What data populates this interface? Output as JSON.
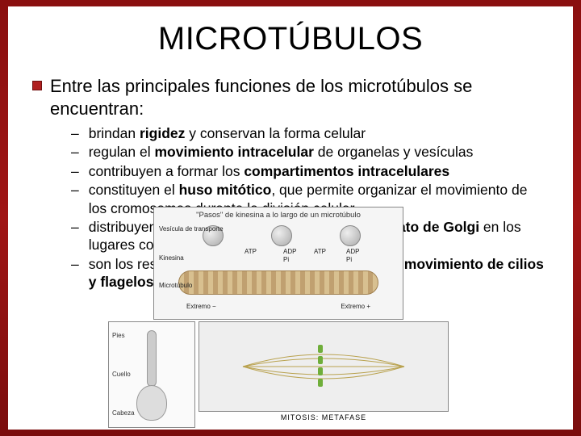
{
  "colors": {
    "slide_bg": "#ffffff",
    "frame_gradient_top": "#8a0f0f",
    "frame_gradient_mid": "#a01515",
    "frame_gradient_bottom": "#7a0d0d",
    "bullet_box": "#b02020",
    "text": "#000000"
  },
  "typography": {
    "title_fontsize_pt": 30,
    "body_fontsize_pt": 17,
    "sub_fontsize_pt": 13,
    "font_family": "Arial"
  },
  "title": "MICROTÚBULOS",
  "intro": "Entre las principales funciones de los microtúbulos se encuentran:",
  "items": [
    {
      "html": "brindan <b>rigidez</b> y conservan la forma celular"
    },
    {
      "html": "regulan el <b>movimiento intracelular</b> de organelas y vesículas"
    },
    {
      "html": "contribuyen a formar los <b>compartimentos intracelulares</b>"
    },
    {
      "html": "constituyen el <b>huso mitótico</b>, que permite organizar el movimiento de los cromosomas durante la división celular"
    },
    {
      "html": "distribuyen el <b>retículo endoplasmático</b> y el <b>aparato de Golgi</b> en los lugares correspondientes"
    },
    {
      "html": "son los responsables del <b>transporte axonal</b> y del <b>movimiento de cilios y flagelos</b>"
    }
  ],
  "figure_kinesin": {
    "title": "\"Pasos\" de kinesina a lo largo de un microtúbulo",
    "labels": {
      "vesicle": "Vesícula de transporte",
      "kinesin": "Kinesina",
      "microtubule": "Microtúbulo",
      "atp": "ATP",
      "adp": "ADP",
      "pi": "Pi",
      "end_minus": "Extremo −",
      "end_plus": "Extremo +"
    },
    "bg": "#f5f5f5",
    "tube_color": "#d8c090"
  },
  "figure_cilium": {
    "labels": {
      "pies": "Pies",
      "cuello": "Cuello",
      "cabeza": "Cabeza"
    },
    "bg": "#fafafa"
  },
  "figure_mitosis": {
    "caption": "MITOSIS: METAFASE",
    "bg": "#eeeeee"
  }
}
